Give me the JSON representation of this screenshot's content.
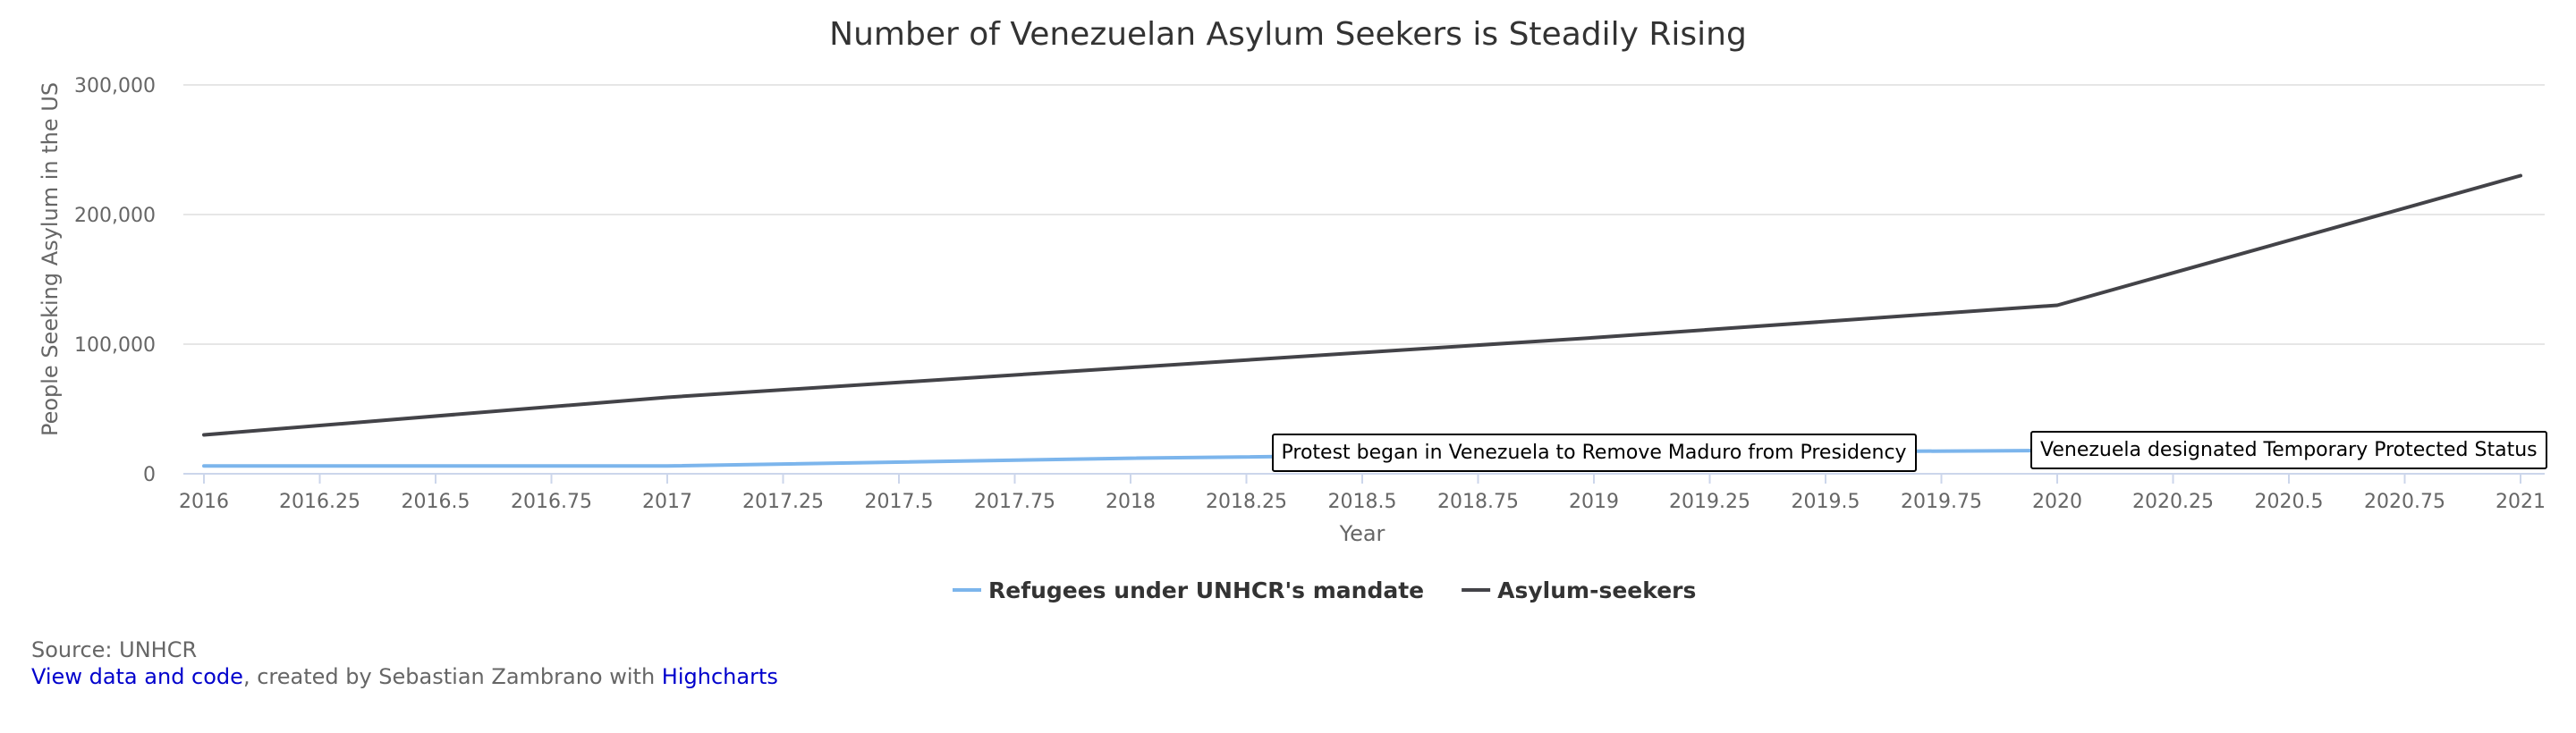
{
  "chart_data": {
    "type": "line",
    "title": "Number of Venezuelan Asylum Seekers is Steadily Rising",
    "xlabel": "Year",
    "ylabel": "People Seeking Asylum in the US",
    "xlim": [
      2016,
      2021
    ],
    "ylim": [
      0,
      300000
    ],
    "x_ticks": [
      "2016",
      "2016.25",
      "2016.5",
      "2016.75",
      "2017",
      "2017.25",
      "2017.5",
      "2017.75",
      "2018",
      "2018.25",
      "2018.5",
      "2018.75",
      "2019",
      "2019.25",
      "2019.5",
      "2019.75",
      "2020",
      "2020.25",
      "2020.5",
      "2020.75",
      "2021"
    ],
    "y_ticks": [
      {
        "value": 0,
        "label": "0"
      },
      {
        "value": 100000,
        "label": "100,000"
      },
      {
        "value": 200000,
        "label": "200,000"
      },
      {
        "value": 300000,
        "label": "300,000"
      }
    ],
    "grid": true,
    "legend_position": "bottom-center",
    "series": [
      {
        "name": "Refugees under UNHCR's mandate",
        "color": "#7cb5ec",
        "x": [
          2016,
          2017,
          2018,
          2019,
          2020
        ],
        "y": [
          6000,
          6000,
          12000,
          16000,
          18000
        ]
      },
      {
        "name": "Asylum-seekers",
        "color": "#434348",
        "x": [
          2016,
          2017,
          2018,
          2019,
          2020,
          2021
        ],
        "y": [
          30000,
          59000,
          82000,
          105000,
          130000,
          230000
        ]
      }
    ],
    "annotations": [
      {
        "text": "Protest began in Venezuela to Remove Maduro from Presidency",
        "x": 2019,
        "y": 16000
      },
      {
        "text": "Venezuela designated Temporary Protected Status",
        "x": 2020.5,
        "y": 18000
      }
    ]
  },
  "footer": {
    "source": "Source: UNHCR",
    "link_text": "View data and code",
    "middle_text": ", created by Sebastian Zambrano with ",
    "highcharts_text": "Highcharts"
  }
}
